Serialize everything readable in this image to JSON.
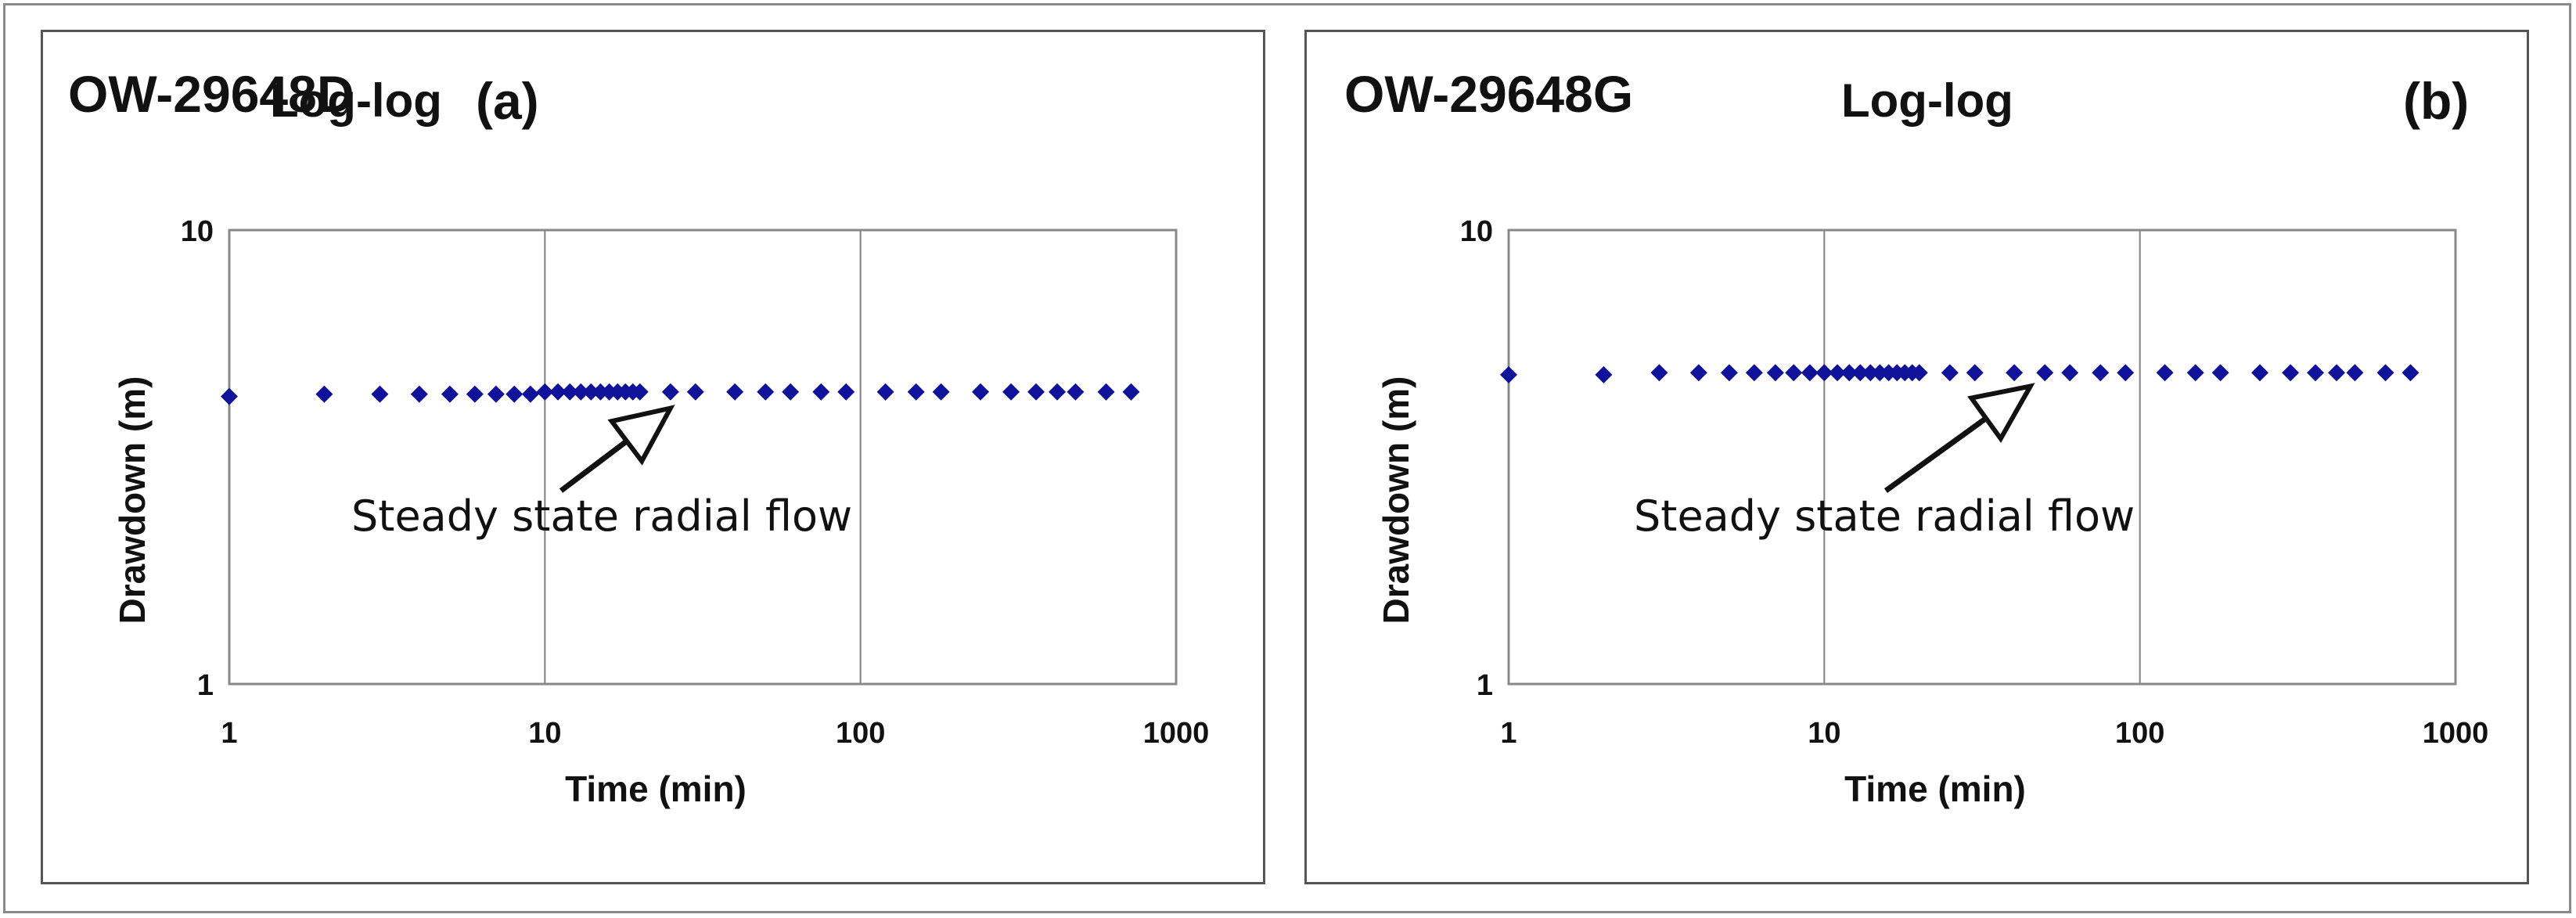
{
  "colors": {
    "marker": "#10139a",
    "grid": "#808080",
    "axis": "#888888",
    "text": "#111111"
  },
  "chart_data": [
    {
      "type": "scatter",
      "panel_label": "OW-29648D",
      "chart_type_label": "Log-log",
      "panel_tag": "(a)",
      "xlabel": "Time (min)",
      "ylabel": "Drawdown (m)",
      "xscale": "log",
      "yscale": "log",
      "xlim": [
        1,
        1000
      ],
      "ylim": [
        1,
        10
      ],
      "xticks": [
        "1",
        "10",
        "100",
        "1000"
      ],
      "yticks": [
        "1",
        "10"
      ],
      "grid": "vertical major gridlines",
      "annotation": {
        "text": "Steady state radial flow",
        "arrow_to": [
          25,
          4.25
        ]
      },
      "series": [
        {
          "x": [
            1,
            2,
            3,
            4,
            5,
            6,
            7,
            8,
            9,
            10,
            11,
            12,
            13,
            14,
            15,
            16,
            17,
            18,
            19,
            20,
            25,
            30,
            40,
            50,
            60,
            75,
            90,
            120,
            150,
            180,
            240,
            300,
            360,
            420,
            480,
            600,
            720
          ],
          "y": [
            4.3,
            4.35,
            4.35,
            4.35,
            4.35,
            4.35,
            4.35,
            4.35,
            4.35,
            4.4,
            4.4,
            4.4,
            4.4,
            4.4,
            4.4,
            4.4,
            4.4,
            4.4,
            4.4,
            4.4,
            4.4,
            4.4,
            4.4,
            4.4,
            4.4,
            4.4,
            4.4,
            4.4,
            4.4,
            4.4,
            4.4,
            4.4,
            4.4,
            4.4,
            4.4,
            4.4,
            4.4
          ]
        }
      ]
    },
    {
      "type": "scatter",
      "panel_label": "OW-29648G",
      "chart_type_label": "Log-log",
      "panel_tag": "(b)",
      "xlabel": "Time (min)",
      "ylabel": "Drawdown (m)",
      "xscale": "log",
      "yscale": "log",
      "xlim": [
        1,
        1000
      ],
      "ylim": [
        1,
        10
      ],
      "xticks": [
        "1",
        "10",
        "100",
        "1000"
      ],
      "yticks": [
        "1",
        "10"
      ],
      "grid": "vertical major gridlines",
      "annotation": {
        "text": "Steady state radial flow",
        "arrow_to": [
          45,
          4.75
        ]
      },
      "series": [
        {
          "x": [
            1,
            2,
            3,
            4,
            5,
            6,
            7,
            8,
            9,
            10,
            11,
            12,
            13,
            14,
            15,
            16,
            17,
            18,
            19,
            20,
            25,
            30,
            40,
            50,
            60,
            75,
            90,
            120,
            150,
            180,
            240,
            300,
            360,
            420,
            480,
            600,
            720
          ],
          "y": [
            4.8,
            4.8,
            4.85,
            4.85,
            4.85,
            4.85,
            4.85,
            4.85,
            4.85,
            4.85,
            4.85,
            4.85,
            4.85,
            4.85,
            4.85,
            4.85,
            4.85,
            4.85,
            4.85,
            4.85,
            4.85,
            4.85,
            4.85,
            4.85,
            4.85,
            4.85,
            4.85,
            4.85,
            4.85,
            4.85,
            4.85,
            4.85,
            4.85,
            4.85,
            4.85,
            4.85,
            4.85
          ]
        }
      ]
    }
  ]
}
